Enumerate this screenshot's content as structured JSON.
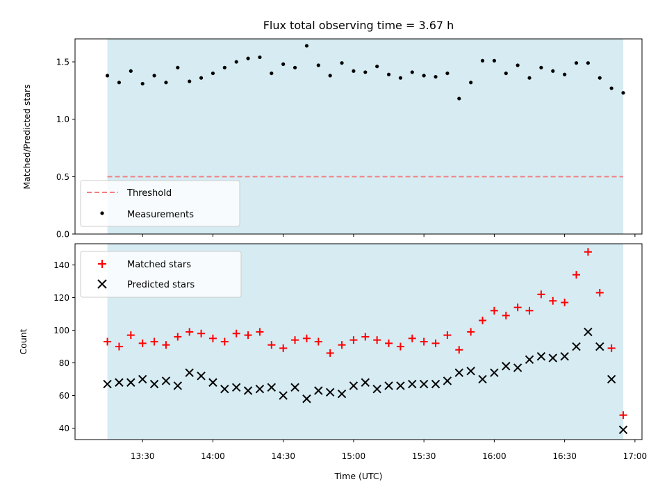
{
  "chart_data": {
    "title": "Flux total observing time = 3.67 h",
    "xlabel": "Time (UTC)",
    "x_ticks": [
      "13:30",
      "14:00",
      "14:30",
      "15:00",
      "15:30",
      "16:00",
      "16:30",
      "17:00"
    ],
    "x_range_hours": [
      13.02,
      17.05
    ],
    "shaded_span_hours": [
      13.25,
      16.917
    ],
    "shade_color": "#add8e6",
    "panels": [
      {
        "type": "scatter",
        "ylabel": "Matched/Predicted stars",
        "ylim": [
          0.0,
          1.7
        ],
        "y_ticks": [
          0.0,
          0.5,
          1.0,
          1.5
        ],
        "threshold": {
          "name": "Threshold",
          "value": 0.5,
          "color": "#f08080"
        },
        "legend_position": "lower-left",
        "series": [
          {
            "name": "Measurements",
            "color": "#000000",
            "marker": "dot",
            "x": [
              "13:15",
              "13:20",
              "13:25",
              "13:30",
              "13:35",
              "13:40",
              "13:45",
              "13:50",
              "13:55",
              "14:00",
              "14:05",
              "14:10",
              "14:15",
              "14:20",
              "14:25",
              "14:30",
              "14:35",
              "14:40",
              "14:45",
              "14:50",
              "14:55",
              "15:00",
              "15:05",
              "15:10",
              "15:15",
              "15:20",
              "15:25",
              "15:30",
              "15:35",
              "15:40",
              "15:45",
              "15:50",
              "15:55",
              "16:00",
              "16:05",
              "16:10",
              "16:15",
              "16:20",
              "16:25",
              "16:30",
              "16:35",
              "16:40",
              "16:45",
              "16:50",
              "16:55"
            ],
            "y": [
              1.38,
              1.32,
              1.42,
              1.31,
              1.38,
              1.32,
              1.45,
              1.33,
              1.36,
              1.4,
              1.45,
              1.5,
              1.53,
              1.54,
              1.4,
              1.48,
              1.45,
              1.64,
              1.47,
              1.38,
              1.49,
              1.42,
              1.41,
              1.46,
              1.39,
              1.36,
              1.41,
              1.38,
              1.37,
              1.4,
              1.18,
              1.32,
              1.51,
              1.51,
              1.4,
              1.47,
              1.36,
              1.45,
              1.42,
              1.39,
              1.49,
              1.49,
              1.36,
              1.27,
              1.23
            ]
          }
        ]
      },
      {
        "type": "scatter",
        "ylabel": "Count",
        "ylim": [
          33,
          153
        ],
        "y_ticks": [
          40,
          60,
          80,
          100,
          120,
          140
        ],
        "legend_position": "upper-left",
        "series": [
          {
            "name": "Matched stars",
            "color": "#ff0000",
            "marker": "plus",
            "x": [
              "13:15",
              "13:20",
              "13:25",
              "13:30",
              "13:35",
              "13:40",
              "13:45",
              "13:50",
              "13:55",
              "14:00",
              "14:05",
              "14:10",
              "14:15",
              "14:20",
              "14:25",
              "14:30",
              "14:35",
              "14:40",
              "14:45",
              "14:50",
              "14:55",
              "15:00",
              "15:05",
              "15:10",
              "15:15",
              "15:20",
              "15:25",
              "15:30",
              "15:35",
              "15:40",
              "15:45",
              "15:50",
              "15:55",
              "16:00",
              "16:05",
              "16:10",
              "16:15",
              "16:20",
              "16:25",
              "16:30",
              "16:35",
              "16:40",
              "16:45",
              "16:50",
              "16:55"
            ],
            "y": [
              93,
              90,
              97,
              92,
              93,
              91,
              96,
              99,
              98,
              95,
              93,
              98,
              97,
              99,
              91,
              89,
              94,
              95,
              93,
              86,
              91,
              94,
              96,
              94,
              92,
              90,
              95,
              93,
              92,
              97,
              88,
              99,
              106,
              112,
              109,
              114,
              112,
              122,
              118,
              117,
              134,
              148,
              123,
              89,
              48
            ]
          },
          {
            "name": "Predicted stars",
            "color": "#000000",
            "marker": "x",
            "x": [
              "13:15",
              "13:20",
              "13:25",
              "13:30",
              "13:35",
              "13:40",
              "13:45",
              "13:50",
              "13:55",
              "14:00",
              "14:05",
              "14:10",
              "14:15",
              "14:20",
              "14:25",
              "14:30",
              "14:35",
              "14:40",
              "14:45",
              "14:50",
              "14:55",
              "15:00",
              "15:05",
              "15:10",
              "15:15",
              "15:20",
              "15:25",
              "15:30",
              "15:35",
              "15:40",
              "15:45",
              "15:50",
              "15:55",
              "16:00",
              "16:05",
              "16:10",
              "16:15",
              "16:20",
              "16:25",
              "16:30",
              "16:35",
              "16:40",
              "16:45",
              "16:50",
              "16:55"
            ],
            "y": [
              67,
              68,
              68,
              70,
              67,
              69,
              66,
              74,
              72,
              68,
              64,
              65,
              63,
              64,
              65,
              60,
              65,
              58,
              63,
              62,
              61,
              66,
              68,
              64,
              66,
              66,
              67,
              67,
              67,
              69,
              74,
              75,
              70,
              74,
              78,
              77,
              82,
              84,
              83,
              84,
              90,
              99,
              90,
              70,
              39
            ]
          }
        ]
      }
    ]
  }
}
